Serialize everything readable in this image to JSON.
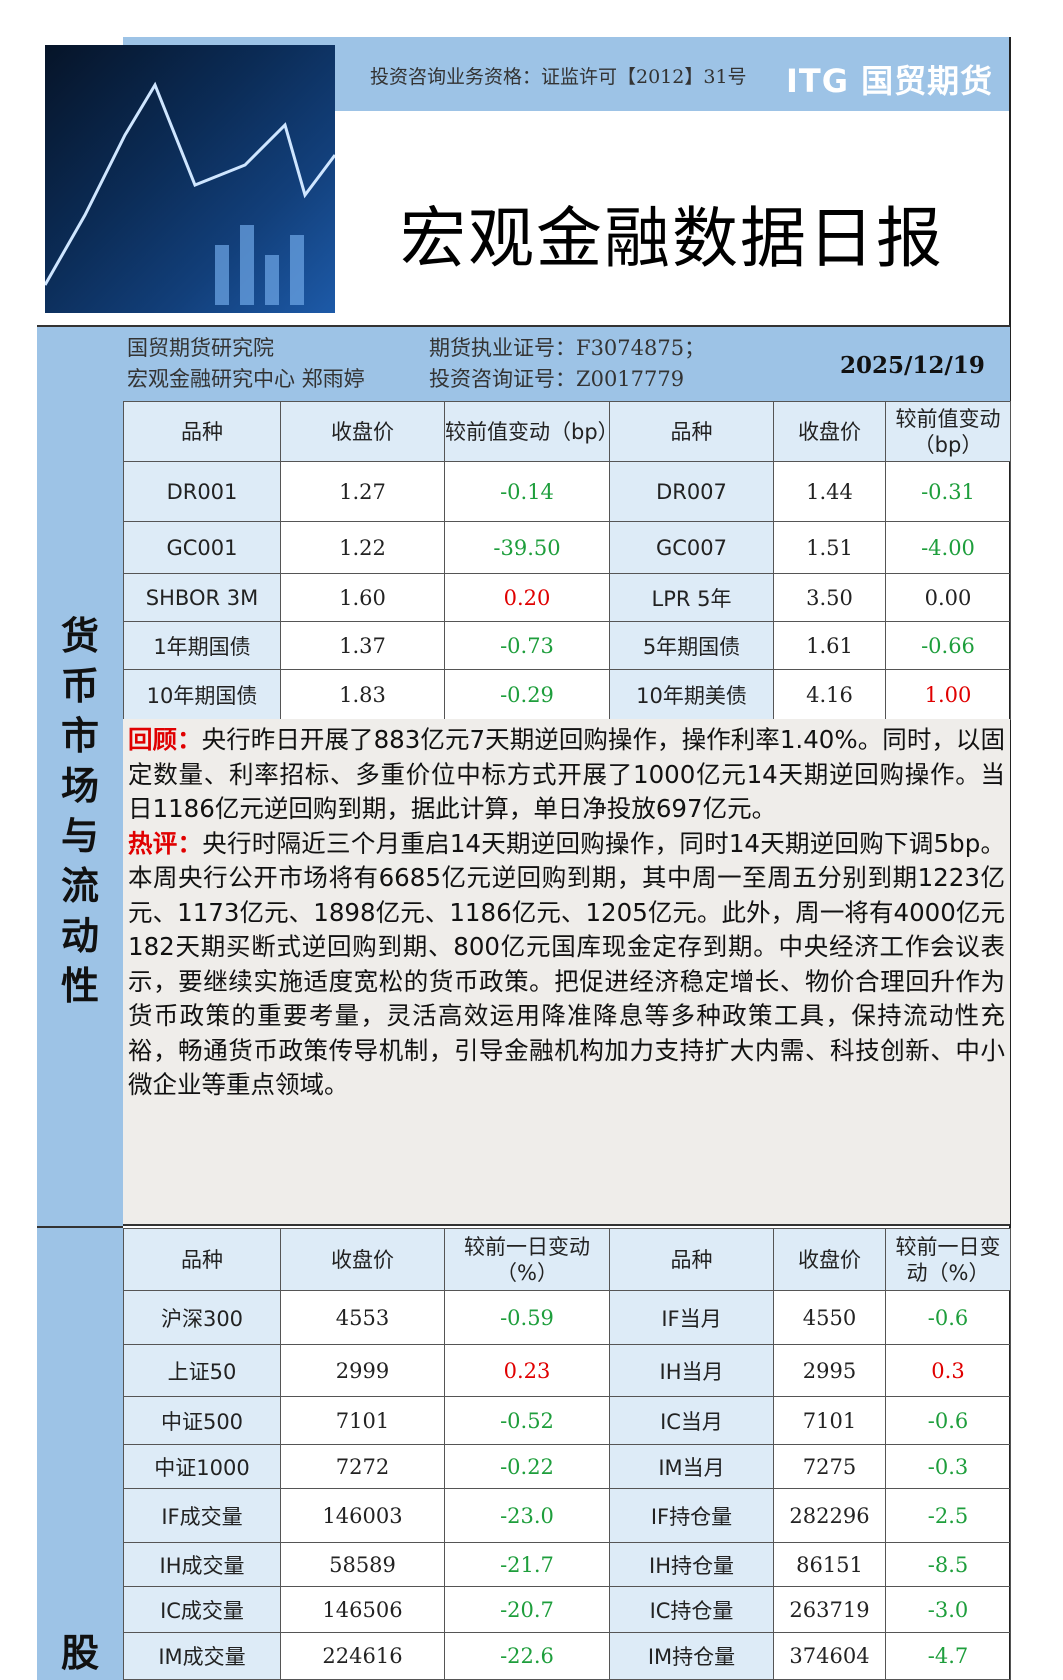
{
  "header": {
    "qualification": "投资咨询业务资格：证监许可【2012】31号",
    "logo": "ITG 国贸期货",
    "title": "宏观金融数据日报"
  },
  "info": {
    "institute": "国贸期货研究院",
    "center": "宏观金融研究中心 郑雨婷",
    "futures_license": "期货执业证号：F3074875；",
    "advisory_license": "投资咨询证号：Z0017779",
    "date": "2025/12/19"
  },
  "section1": {
    "label": "货币市场与流动性",
    "headers": [
      "品种",
      "收盘价",
      "较前值变动（bp）",
      "品种",
      "收盘价",
      "较前值变动（bp）"
    ],
    "rows": [
      [
        "DR001",
        "1.27",
        "-0.14",
        "DR007",
        "1.44",
        "-0.31"
      ],
      [
        "GC001",
        "1.22",
        "-39.50",
        "GC007",
        "1.51",
        "-4.00"
      ],
      [
        "SHBOR 3M",
        "1.60",
        "0.20",
        "LPR 5年",
        "3.50",
        "0.00"
      ],
      [
        "1年期国债",
        "1.37",
        "-0.73",
        "5年期国债",
        "1.61",
        "-0.66"
      ],
      [
        "10年期国债",
        "1.83",
        "-0.29",
        "10年期美债",
        "4.16",
        "1.00"
      ]
    ],
    "review_label": "回顾：",
    "review": "央行昨日开展了883亿元7天期逆回购操作，操作利率1.40%。同时，以固定数量、利率招标、多重价位中标方式开展了1000亿元14天期逆回购操作。当日1186亿元逆回购到期，据此计算，单日净投放697亿元。",
    "comment_label": "热评：",
    "comment": "央行时隔近三个月重启14天期逆回购操作，同时14天期逆回购下调5bp。本周央行公开市场将有6685亿元逆回购到期，其中周一至周五分别到期1223亿元、1173亿元、1898亿元、1186亿元、1205亿元。此外，周一将有4000亿元182天期买断式逆回购到期、800亿元国库现金定存到期。中央经济工作会议表示，要继续实施适度宽松的货币政策。把促进经济稳定增长、物价合理回升作为货币政策的重要考量，灵活高效运用降准降息等多种政策工具，保持流动性充裕，畅通货币政策传导机制，引导金融机构加力支持扩大内需、科技创新、中小微企业等重点领域。"
  },
  "section2": {
    "label": "股",
    "headers": [
      "品种",
      "收盘价",
      "较前一日变动（%）",
      "品种",
      "收盘价",
      "较前一日变动（%）"
    ],
    "rows": [
      [
        "沪深300",
        "4553",
        "-0.59",
        "IF当月",
        "4550",
        "-0.6"
      ],
      [
        "上证50",
        "2999",
        "0.23",
        "IH当月",
        "2995",
        "0.3"
      ],
      [
        "中证500",
        "7101",
        "-0.52",
        "IC当月",
        "7101",
        "-0.6"
      ],
      [
        "中证1000",
        "7272",
        "-0.22",
        "IM当月",
        "7275",
        "-0.3"
      ],
      [
        "IF成交量",
        "146003",
        "-23.0",
        "IF持仓量",
        "282296",
        "-2.5"
      ],
      [
        "IH成交量",
        "58589",
        "-21.7",
        "IH持仓量",
        "86151",
        "-8.5"
      ],
      [
        "IC成交量",
        "146506",
        "-20.7",
        "IC持仓量",
        "263719",
        "-3.0"
      ],
      [
        "IM成交量",
        "224616",
        "-22.6",
        "IM持仓量",
        "374604",
        "-4.7"
      ]
    ]
  },
  "colors": {
    "band": "#9dc3e6",
    "header_cell": "#ddebf7",
    "up": "#e00000",
    "down": "#1e9e3c"
  }
}
